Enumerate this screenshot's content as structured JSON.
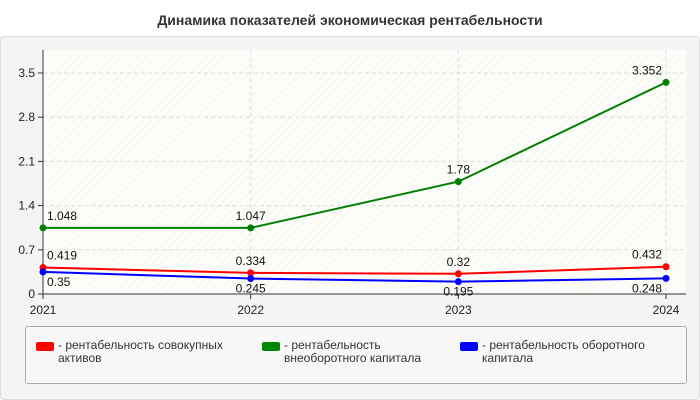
{
  "chart_data": {
    "type": "line",
    "title": "Динамика показателей экономическая рентабельности",
    "categories": [
      "2021",
      "2022",
      "2023",
      "2024"
    ],
    "ylim": [
      0,
      3.5
    ],
    "yticks": [
      "0",
      "0.7",
      "1.4",
      "2.1",
      "2.8",
      "3.5"
    ],
    "grid": true,
    "legend_position": "bottom",
    "series": [
      {
        "name": "- рентабельность совокупных активов",
        "color": "#ff0000",
        "values": [
          0.419,
          0.334,
          0.32,
          0.432
        ]
      },
      {
        "name": "- рентабельность внеоборотного капитала",
        "color": "#008000",
        "values": [
          1.048,
          1.047,
          1.78,
          3.352
        ]
      },
      {
        "name": "- рентабельность оборотного капитала",
        "color": "#0000ff",
        "values": [
          0.35,
          0.245,
          0.195,
          0.248
        ]
      }
    ]
  }
}
